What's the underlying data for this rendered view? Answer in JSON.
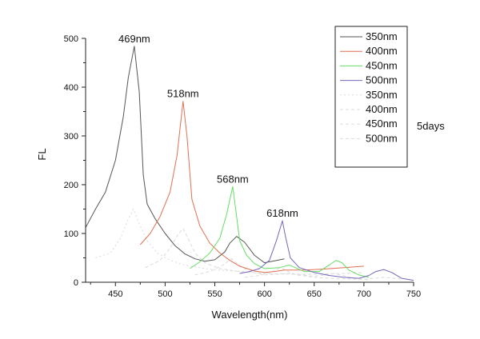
{
  "chart_data": {
    "type": "line",
    "xlabel": "Wavelength(nm)",
    "ylabel": "FL",
    "xlim": [
      420,
      750
    ],
    "ylim": [
      0,
      500
    ],
    "x_ticks": [
      450,
      500,
      550,
      600,
      650,
      700,
      750
    ],
    "y_ticks": [
      0,
      100,
      200,
      300,
      400,
      500
    ],
    "grid": false,
    "legend_position": "top-right",
    "side_note": "5days",
    "annotations": [
      {
        "text": "469nm",
        "x": 469,
        "y": 484
      },
      {
        "text": "518nm",
        "x": 518,
        "y": 371
      },
      {
        "text": "568nm",
        "x": 568,
        "y": 196
      },
      {
        "text": "618nm",
        "x": 618,
        "y": 126
      }
    ],
    "series": [
      {
        "name": "350nm",
        "color": "#555555",
        "dash": "solid",
        "points": [
          [
            420,
            112
          ],
          [
            430,
            150
          ],
          [
            440,
            185
          ],
          [
            450,
            250
          ],
          [
            458,
            340
          ],
          [
            463,
            420
          ],
          [
            469,
            484
          ],
          [
            474,
            390
          ],
          [
            478,
            220
          ],
          [
            482,
            160
          ],
          [
            490,
            130
          ],
          [
            500,
            100
          ],
          [
            510,
            75
          ],
          [
            520,
            58
          ],
          [
            530,
            48
          ],
          [
            540,
            43
          ],
          [
            550,
            46
          ],
          [
            560,
            62
          ],
          [
            565,
            80
          ],
          [
            572,
            94
          ],
          [
            580,
            82
          ],
          [
            590,
            55
          ],
          [
            600,
            40
          ],
          [
            610,
            44
          ],
          [
            620,
            48
          ]
        ]
      },
      {
        "name": "400nm",
        "color": "#e07050",
        "dash": "solid",
        "points": [
          [
            475,
            77
          ],
          [
            485,
            100
          ],
          [
            495,
            135
          ],
          [
            505,
            185
          ],
          [
            512,
            260
          ],
          [
            518,
            371
          ],
          [
            522,
            300
          ],
          [
            527,
            170
          ],
          [
            535,
            115
          ],
          [
            545,
            80
          ],
          [
            555,
            60
          ],
          [
            565,
            45
          ],
          [
            575,
            33
          ],
          [
            590,
            23
          ],
          [
            600,
            20
          ],
          [
            610,
            22
          ],
          [
            620,
            25
          ],
          [
            640,
            25
          ],
          [
            660,
            27
          ],
          [
            680,
            30
          ],
          [
            700,
            33
          ]
        ]
      },
      {
        "name": "450nm",
        "color": "#66dd66",
        "dash": "solid",
        "points": [
          [
            525,
            28
          ],
          [
            535,
            42
          ],
          [
            545,
            60
          ],
          [
            555,
            90
          ],
          [
            562,
            140
          ],
          [
            568,
            196
          ],
          [
            571,
            150
          ],
          [
            575,
            85
          ],
          [
            582,
            55
          ],
          [
            590,
            38
          ],
          [
            600,
            28
          ],
          [
            615,
            30
          ],
          [
            625,
            35
          ],
          [
            640,
            22
          ],
          [
            655,
            22
          ],
          [
            665,
            35
          ],
          [
            672,
            45
          ],
          [
            678,
            40
          ],
          [
            685,
            25
          ],
          [
            695,
            15
          ],
          [
            705,
            10
          ]
        ]
      },
      {
        "name": "500nm",
        "color": "#7766bb",
        "dash": "solid",
        "points": [
          [
            575,
            18
          ],
          [
            585,
            22
          ],
          [
            595,
            28
          ],
          [
            605,
            45
          ],
          [
            612,
            85
          ],
          [
            618,
            126
          ],
          [
            621,
            95
          ],
          [
            626,
            50
          ],
          [
            635,
            30
          ],
          [
            650,
            20
          ],
          [
            665,
            14
          ],
          [
            680,
            10
          ],
          [
            695,
            8
          ],
          [
            705,
            14
          ],
          [
            712,
            22
          ],
          [
            720,
            26
          ],
          [
            728,
            20
          ],
          [
            738,
            8
          ],
          [
            750,
            4
          ]
        ]
      },
      {
        "name": "350nm",
        "color": "#dddddd",
        "dash": "2,3",
        "points": [
          [
            430,
            50
          ],
          [
            445,
            60
          ],
          [
            455,
            90
          ],
          [
            462,
            125
          ],
          [
            468,
            150
          ],
          [
            474,
            120
          ],
          [
            482,
            85
          ],
          [
            492,
            60
          ],
          [
            505,
            45
          ],
          [
            520,
            35
          ],
          [
            540,
            28
          ],
          [
            560,
            24
          ],
          [
            580,
            22
          ]
        ]
      },
      {
        "name": "400nm",
        "color": "#dddddd",
        "dash": "4,3",
        "points": [
          [
            480,
            30
          ],
          [
            495,
            45
          ],
          [
            505,
            70
          ],
          [
            512,
            95
          ],
          [
            518,
            110
          ],
          [
            523,
            90
          ],
          [
            530,
            60
          ],
          [
            540,
            40
          ],
          [
            555,
            28
          ],
          [
            575,
            22
          ],
          [
            600,
            18
          ],
          [
            640,
            16
          ],
          [
            680,
            18
          ],
          [
            700,
            20
          ]
        ]
      },
      {
        "name": "450nm",
        "color": "#dddddd",
        "dash": "4,3",
        "points": [
          [
            530,
            15
          ],
          [
            545,
            22
          ],
          [
            558,
            35
          ],
          [
            567,
            48
          ],
          [
            574,
            35
          ],
          [
            585,
            22
          ],
          [
            600,
            15
          ],
          [
            625,
            18
          ],
          [
            650,
            12
          ],
          [
            670,
            18
          ],
          [
            690,
            8
          ],
          [
            705,
            5
          ]
        ]
      },
      {
        "name": "500nm",
        "color": "#dddddd",
        "dash": "4,3",
        "points": [
          [
            580,
            10
          ],
          [
            595,
            14
          ],
          [
            608,
            22
          ],
          [
            616,
            30
          ],
          [
            622,
            24
          ],
          [
            632,
            15
          ],
          [
            650,
            10
          ],
          [
            675,
            7
          ],
          [
            700,
            6
          ],
          [
            720,
            10
          ],
          [
            740,
            6
          ]
        ]
      }
    ]
  }
}
